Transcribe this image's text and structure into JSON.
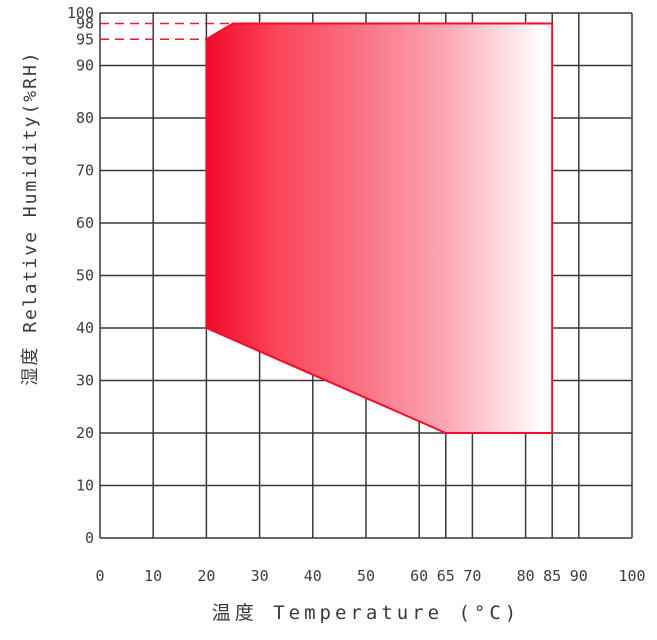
{
  "chart_data": {
    "type": "area",
    "title": "",
    "xlabel": "温度 Temperature (°C)",
    "ylabel": "湿度 Relative Humidity(%RH)",
    "xlim": [
      0,
      100
    ],
    "ylim": [
      0,
      100
    ],
    "x_ticks": [
      0,
      10,
      20,
      30,
      40,
      50,
      60,
      65,
      70,
      80,
      85,
      90,
      100
    ],
    "y_ticks": [
      0,
      10,
      20,
      30,
      40,
      50,
      60,
      70,
      80,
      90,
      95,
      98,
      100
    ],
    "x_gridlines": [
      0,
      10,
      20,
      30,
      40,
      50,
      60,
      65,
      70,
      80,
      85,
      90,
      100
    ],
    "y_gridlines": [
      0,
      10,
      20,
      30,
      40,
      50,
      60,
      70,
      80,
      90,
      100
    ],
    "grid_on": true,
    "legend": "none",
    "grid_color": "#383838",
    "label_color": "#3d3d3d",
    "region": {
      "name": "operating-range",
      "vertices_temp_rh": [
        [
          20,
          40
        ],
        [
          20,
          95
        ],
        [
          25,
          98
        ],
        [
          85,
          98
        ],
        [
          85,
          20
        ],
        [
          65,
          20
        ]
      ],
      "outline_color": "#f50a2b",
      "gradient_direction": "left-to-right",
      "gradient_stops": [
        [
          "0%",
          "#f10a2b"
        ],
        [
          "20%",
          "#fa4458"
        ],
        [
          "45%",
          "#f97384"
        ],
        [
          "70%",
          "#fbaab6"
        ],
        [
          "97%",
          "#ffffff"
        ],
        [
          "100%",
          "#ffffff"
        ]
      ]
    },
    "reference_lines": [
      {
        "axis": "y",
        "value": 98,
        "style": "dashed",
        "color": "#f2192e",
        "x_end": 25
      },
      {
        "axis": "y",
        "value": 95,
        "style": "dashed",
        "color": "#f2192e",
        "x_end": 20
      }
    ]
  }
}
